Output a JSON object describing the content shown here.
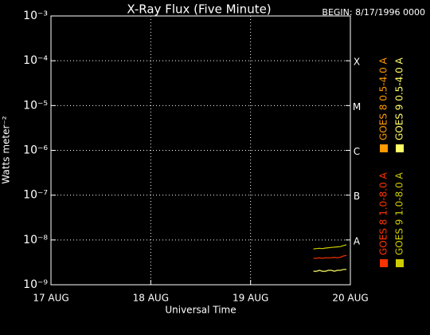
{
  "chart_data": {
    "type": "line",
    "title": "X-Ray Flux (Five Minute)",
    "subtitle": "BEGIN: 8/17/1996 0000",
    "x_label": "Universal Time",
    "y_label": "Watts meter⁻²",
    "log_y": true,
    "grid": true,
    "xlim": [
      17,
      20
    ],
    "xticks": [
      {
        "value": 17,
        "label": "17 AUG"
      },
      {
        "value": 18,
        "label": "18 AUG"
      },
      {
        "value": 19,
        "label": "19 AUG"
      },
      {
        "value": 20,
        "label": "20 AUG"
      }
    ],
    "ylim": [
      1e-09,
      0.001
    ],
    "yticks": [
      {
        "value": 1e-09,
        "label": "10⁻⁹"
      },
      {
        "value": 1e-08,
        "label": "10⁻⁸"
      },
      {
        "value": 1e-07,
        "label": "10⁻⁷"
      },
      {
        "value": 1e-06,
        "label": "10⁻⁶"
      },
      {
        "value": 1e-05,
        "label": "10⁻⁵"
      },
      {
        "value": 0.0001,
        "label": "10⁻⁴"
      },
      {
        "value": 0.001,
        "label": "10⁻³"
      }
    ],
    "flare_classes": [
      {
        "value": 0.0001,
        "label": "X"
      },
      {
        "value": 1e-05,
        "label": "M"
      },
      {
        "value": 1e-06,
        "label": "C"
      },
      {
        "value": 1e-07,
        "label": "B"
      },
      {
        "value": 1e-08,
        "label": "A"
      }
    ],
    "x": [
      19.63,
      19.66,
      19.69,
      19.72,
      19.75,
      19.78,
      19.81,
      19.84,
      19.87,
      19.9,
      19.93,
      19.96
    ],
    "series": [
      {
        "name": "GOES 8 1.0-8.0 A",
        "color": "#ff3300",
        "values": [
          3.9e-09,
          3.9e-09,
          4e-09,
          3.9e-09,
          4e-09,
          4e-09,
          4e-09,
          4.1e-09,
          4e-09,
          4.1e-09,
          4.4e-09,
          4.5e-09
        ]
      },
      {
        "name": "GOES 8 0.5-4.0 A",
        "color": "#ff9900",
        "values": [
          null,
          null,
          null,
          null,
          null,
          null,
          null,
          null,
          null,
          null,
          null,
          null
        ]
      },
      {
        "name": "GOES 9 1.0-8.0 A",
        "color": "#cccc00",
        "values": [
          6.3e-09,
          6.4e-09,
          6.5e-09,
          6.4e-09,
          6.6e-09,
          6.7e-09,
          6.8e-09,
          6.9e-09,
          7e-09,
          7.1e-09,
          7.5e-09,
          7.8e-09
        ]
      },
      {
        "name": "GOES 9 0.5-4.0 A",
        "color": "#ffff66",
        "values": [
          2e-09,
          2e-09,
          2.1e-09,
          2e-09,
          2e-09,
          2.1e-09,
          2.1e-09,
          2e-09,
          2.1e-09,
          2.1e-09,
          2.2e-09,
          2.2e-09
        ]
      }
    ]
  }
}
